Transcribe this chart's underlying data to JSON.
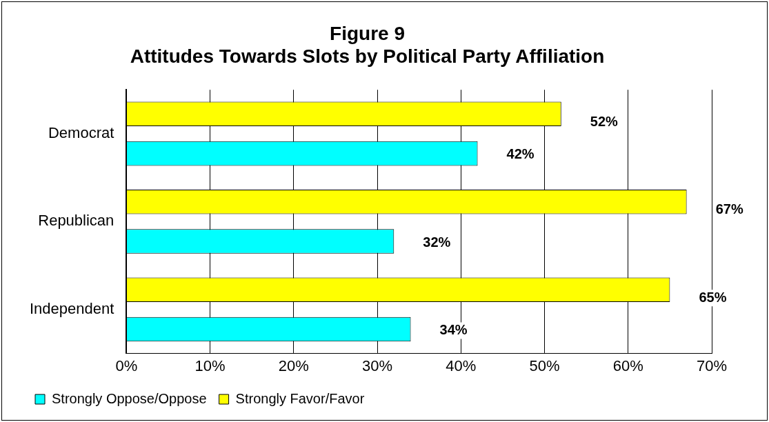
{
  "chart_data": {
    "type": "bar",
    "orientation": "horizontal",
    "title": [
      "Figure 9",
      "Attitudes Towards Slots by Political Party Affiliation"
    ],
    "categories": [
      "Democrat",
      "Republican",
      "Independent"
    ],
    "series": [
      {
        "name": "Strongly Oppose/Oppose",
        "color": "#00ffff",
        "values": [
          42,
          32,
          34
        ],
        "value_labels": [
          "42%",
          "32%",
          "34%"
        ]
      },
      {
        "name": "Strongly Favor/Favor",
        "color": "#ffff00",
        "values": [
          52,
          67,
          65
        ],
        "value_labels": [
          "52%",
          "67%",
          "65%"
        ]
      }
    ],
    "xlim": [
      0,
      70
    ],
    "xticks": [
      {
        "value": 0,
        "label": "0%"
      },
      {
        "value": 10,
        "label": "10%"
      },
      {
        "value": 20,
        "label": "20%"
      },
      {
        "value": 30,
        "label": "30%"
      },
      {
        "value": 40,
        "label": "40%"
      },
      {
        "value": 50,
        "label": "50%"
      },
      {
        "value": 60,
        "label": "60%"
      },
      {
        "value": 70,
        "label": "70%"
      }
    ],
    "grid": "x",
    "legend": "bottom left"
  }
}
